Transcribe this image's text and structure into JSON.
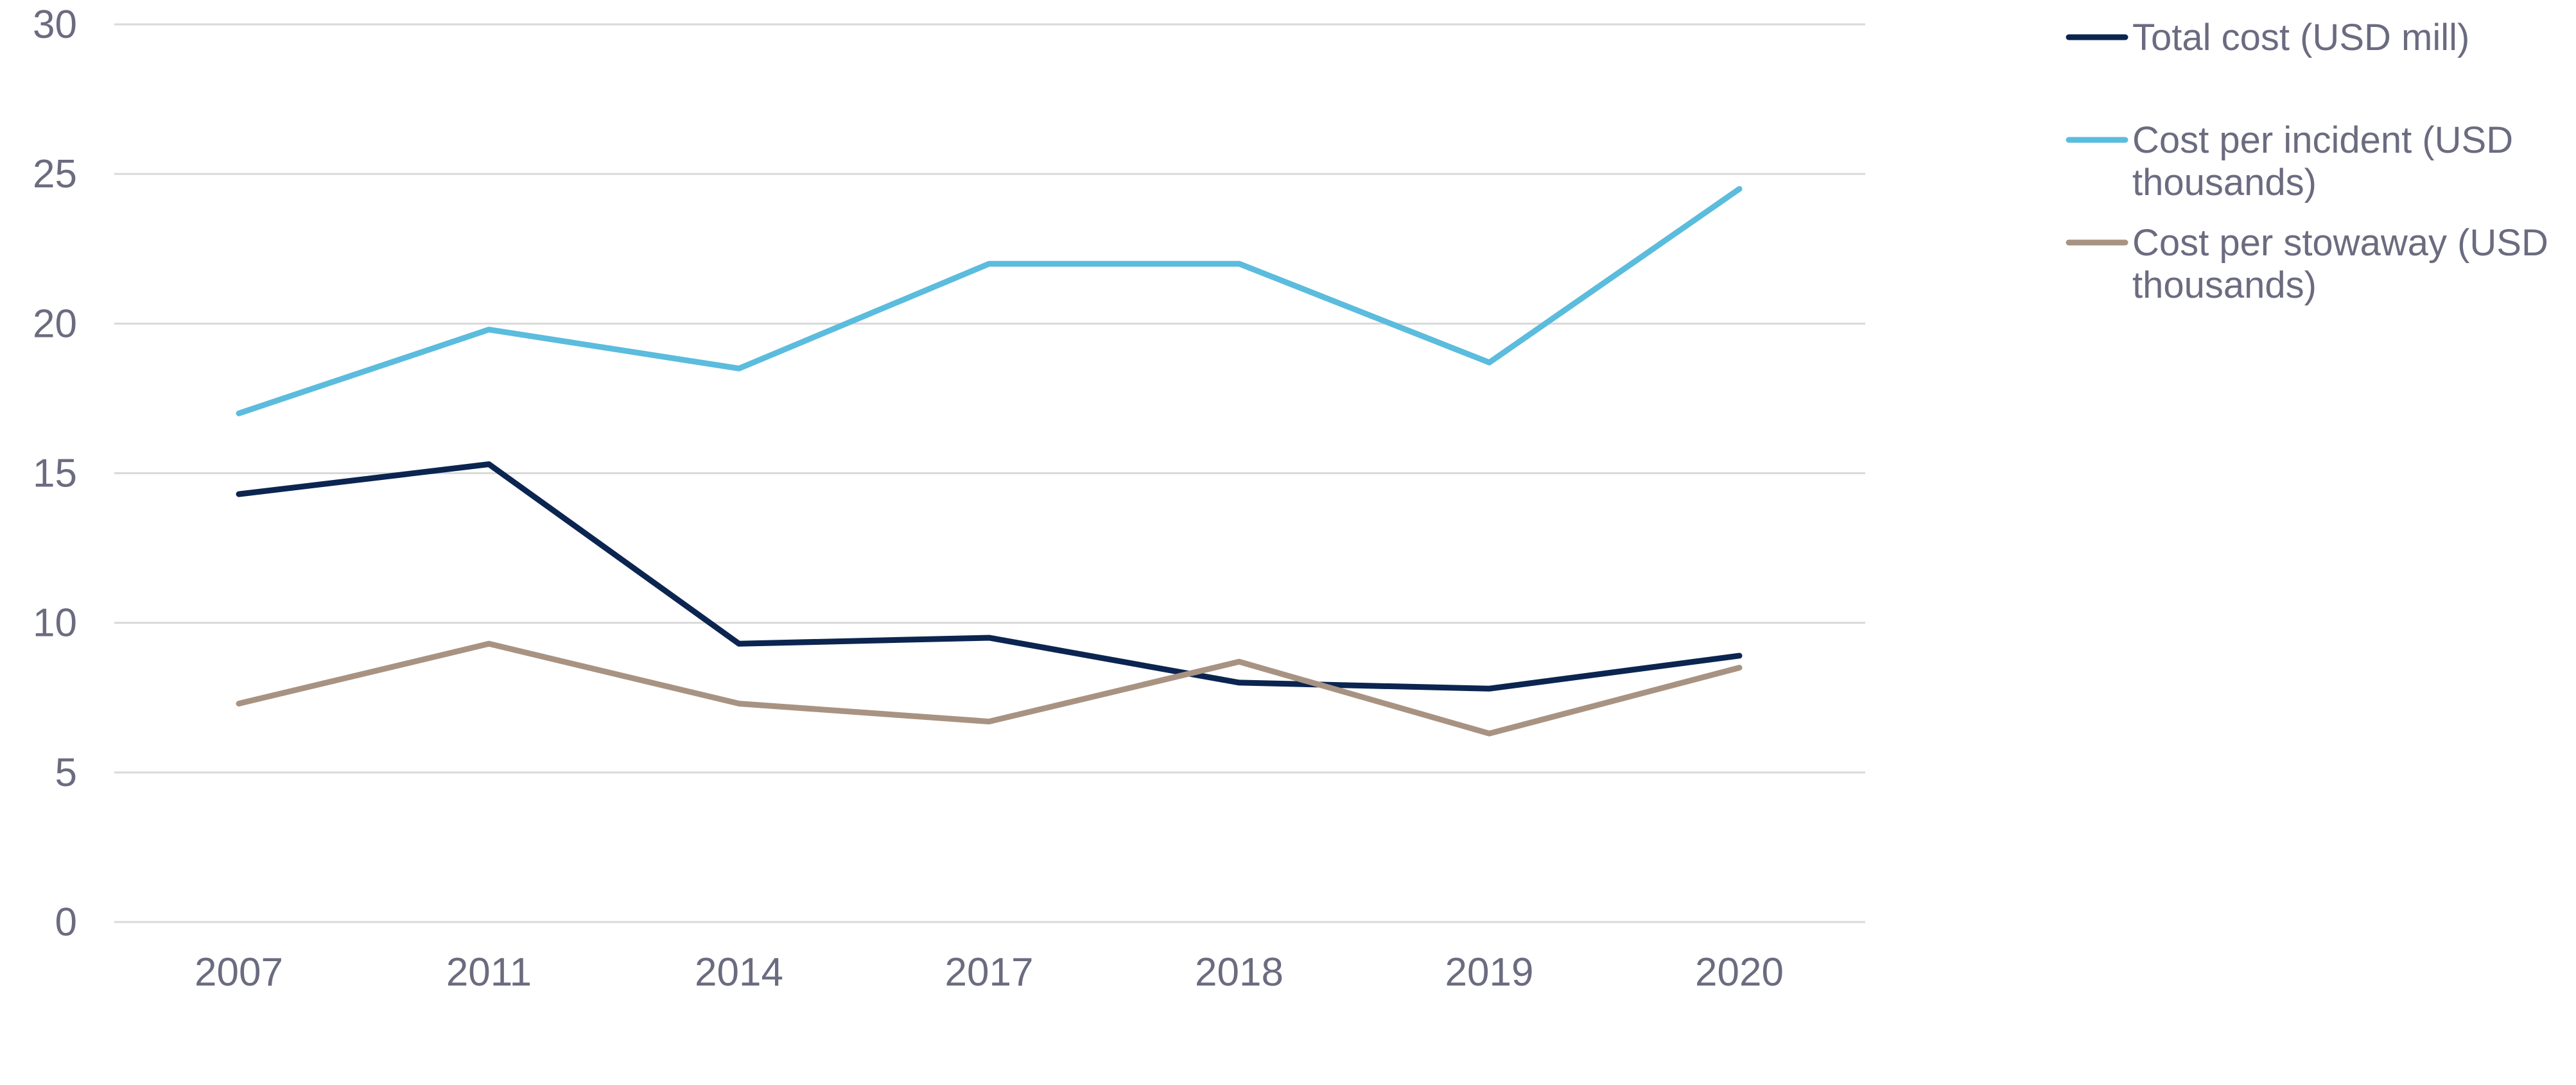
{
  "chart_data": {
    "type": "line",
    "title": "",
    "xlabel": "",
    "ylabel": "",
    "categories": [
      "2007",
      "2011",
      "2014",
      "2017",
      "2018",
      "2019",
      "2020"
    ],
    "ylim": [
      0,
      30
    ],
    "yticks": [
      0,
      5,
      10,
      15,
      20,
      25,
      30
    ],
    "grid": true,
    "legend_position": "right",
    "series": [
      {
        "name": "Total cost (USD mill)",
        "color": "#0b2550",
        "values": [
          14.3,
          15.3,
          9.3,
          9.5,
          8.0,
          7.8,
          8.9
        ]
      },
      {
        "name": "Cost per incident (USD thousands)",
        "color": "#5bbcdd",
        "values": [
          17.0,
          19.8,
          18.5,
          22.0,
          22.0,
          18.7,
          24.5
        ]
      },
      {
        "name": "Cost per stowaway (USD thousands)",
        "color": "#a89383",
        "values": [
          7.3,
          9.3,
          7.3,
          6.7,
          8.7,
          6.3,
          8.5
        ]
      }
    ]
  }
}
